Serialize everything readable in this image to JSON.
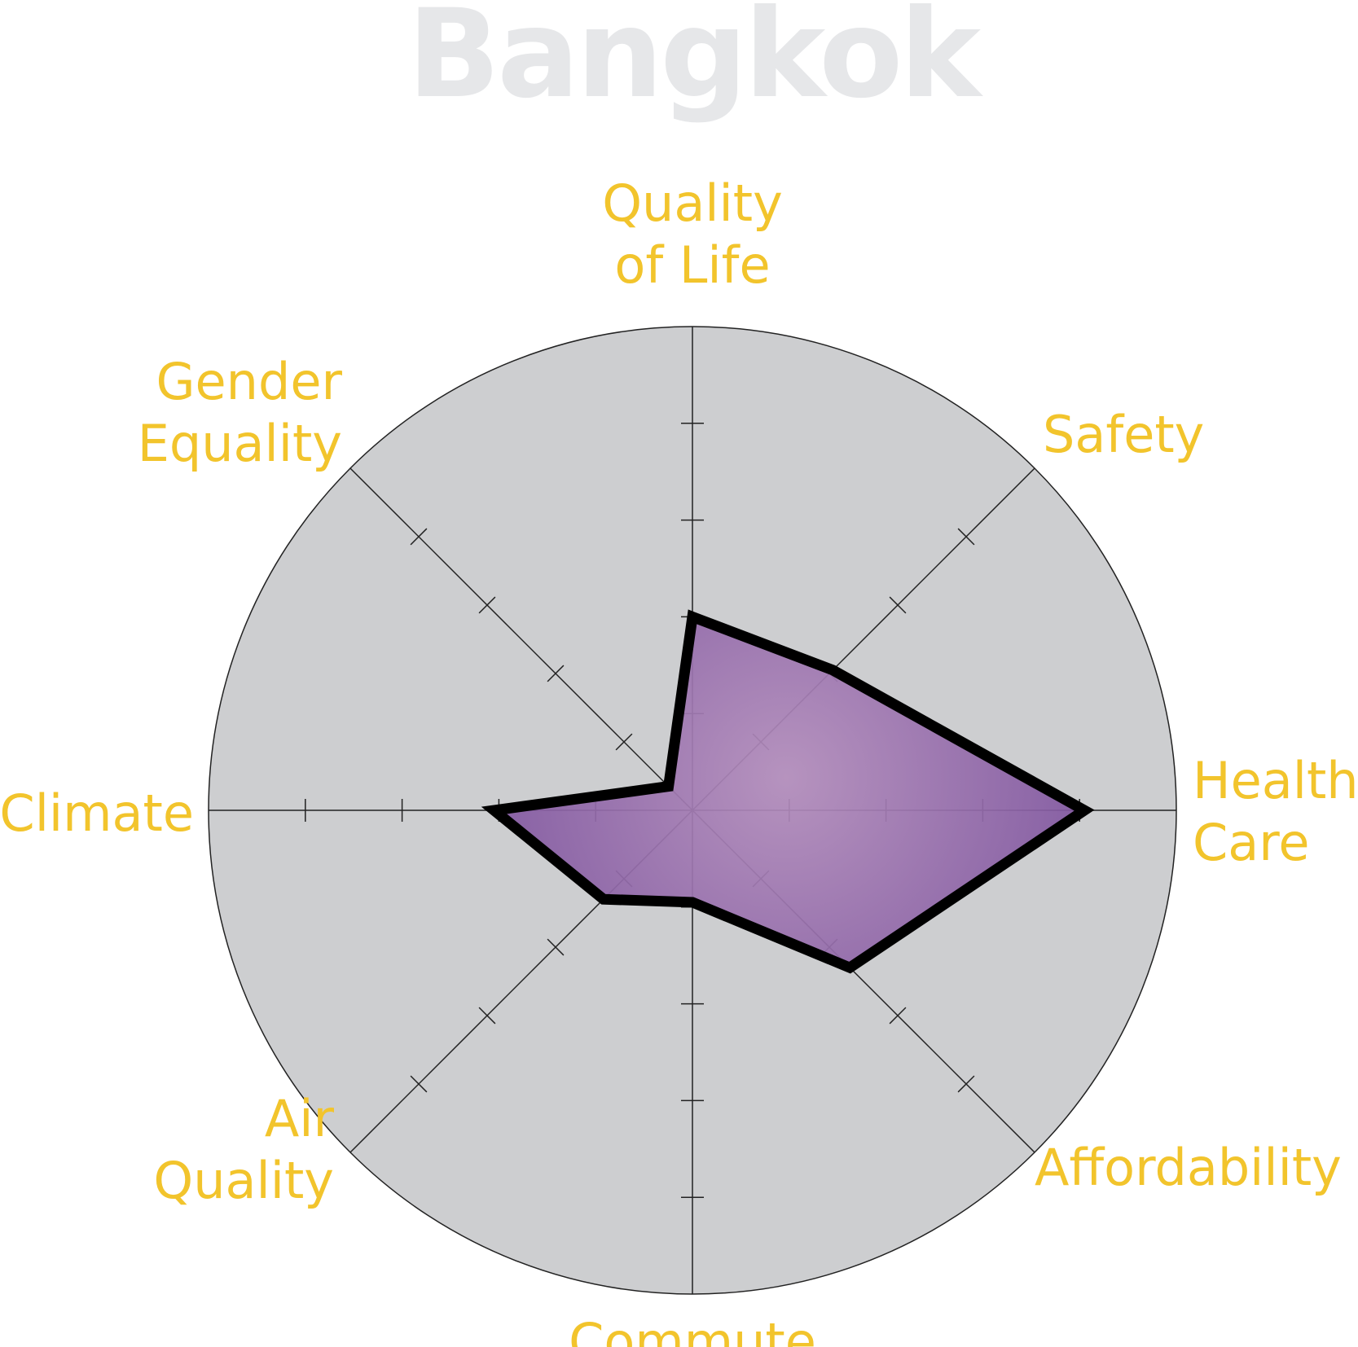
{
  "chart_data": {
    "type": "radar",
    "title": "Bangkok",
    "axes": [
      {
        "name": "Quality of Life",
        "label_lines": [
          "Quality",
          "of Life"
        ]
      },
      {
        "name": "Safety",
        "label_lines": [
          "Safety"
        ]
      },
      {
        "name": "Health Care",
        "label_lines": [
          "Health",
          "Care"
        ]
      },
      {
        "name": "Affordability",
        "label_lines": [
          "Affordability"
        ]
      },
      {
        "name": "Commute",
        "label_lines": [
          "Commute"
        ]
      },
      {
        "name": "Air Quality",
        "label_lines": [
          "Air",
          "Quality"
        ]
      },
      {
        "name": "Climate",
        "label_lines": [
          "Climate"
        ]
      },
      {
        "name": "Gender Equality",
        "label_lines": [
          "Gender",
          "Equality"
        ]
      }
    ],
    "series": [
      {
        "values": [
          4.0,
          4.1,
          8.1,
          4.6,
          1.9,
          2.6,
          4.1,
          0.7
        ]
      }
    ],
    "range": [
      0,
      10
    ],
    "tick_step": 2,
    "grid": false,
    "colors": {
      "background_disc": "#cdced0",
      "fill_edge": "#7a4f9c",
      "fill_center": "#b48ebd",
      "outline": "#000000",
      "axis": "#222222",
      "label": "#f2c42c",
      "title": "#e6e7e9"
    }
  }
}
